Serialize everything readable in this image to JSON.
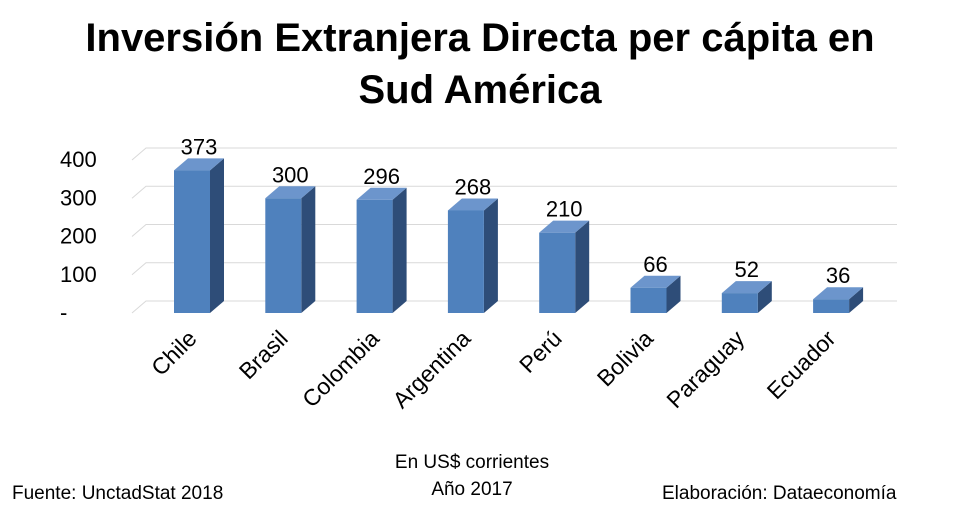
{
  "chart_data": {
    "type": "bar",
    "title": [
      "Inversión Extranjera Directa per cápita en",
      "Sud América"
    ],
    "categories": [
      "Chile",
      "Brasil",
      "Colombia",
      "Argentina",
      "Perú",
      "Bolivia",
      "Paraguay",
      "Ecuador"
    ],
    "values": [
      373,
      300,
      296,
      268,
      210,
      66,
      52,
      36
    ],
    "y_ticks": [
      "-",
      "100",
      "200",
      "300",
      "400"
    ],
    "ylim": [
      0,
      400
    ],
    "grid": true,
    "bar_color": "#4F81BD",
    "bar_side_color": "#2E4D78",
    "bar_top_color": "#6C95CC",
    "data_labels": true,
    "style": "3d-column"
  },
  "subtitle": [
    "En US$ corrientes",
    "Año 2017"
  ],
  "source": "Fuente: UnctadStat 2018",
  "credit": "Elaboración: Dataeconomía"
}
